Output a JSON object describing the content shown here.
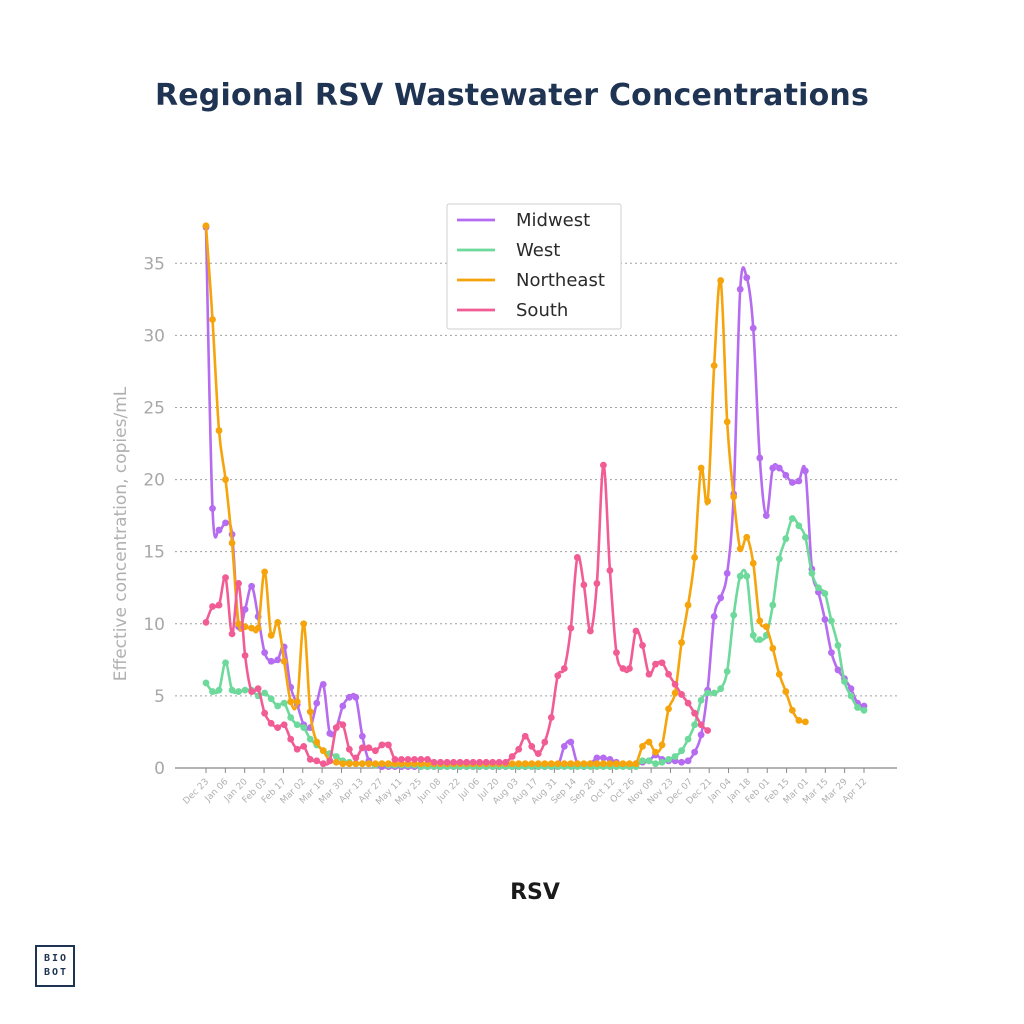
{
  "title": "Regional RSV Wastewater Concentrations",
  "subtitle": "RSV",
  "logo": {
    "line1": "BIO",
    "line2": "BOT"
  },
  "chart_data": {
    "type": "line",
    "title": "Regional RSV Wastewater Concentrations",
    "xlabel": "RSV",
    "ylabel": "Effective concentration, copies/mL",
    "ylim": [
      0,
      38
    ],
    "yticks": [
      0,
      5,
      10,
      15,
      20,
      25,
      30,
      35
    ],
    "grid": "horizontal dotted",
    "legend_position": "top-center",
    "xtick_labels": [
      "Dec 23",
      "Jan 06",
      "Jan 20",
      "Feb 03",
      "Feb 17",
      "Mar 02",
      "Mar 16",
      "Mar 30",
      "Apr 13",
      "Apr 27",
      "May 11",
      "May 25",
      "Jun 08",
      "Jun 22",
      "Jul 06",
      "Jul 20",
      "Aug 03",
      "Aug 17",
      "Aug 31",
      "Sep 14",
      "Sep 28",
      "Oct 12",
      "Oct 26",
      "Nov 09",
      "Nov 23",
      "Dec 07",
      "Dec 21",
      "Jan 04",
      "Jan 18",
      "Feb 01",
      "Feb 15",
      "Mar 01",
      "Mar 15",
      "Mar 29",
      "Apr 12"
    ],
    "series": [
      {
        "name": "Midwest",
        "color": "#b56cf0",
        "values": [
          37.5,
          18.0,
          16.5,
          17.0,
          16.2,
          9.8,
          11.0,
          12.6,
          10.5,
          8.0,
          7.4,
          7.5,
          8.4,
          5.6,
          4.4,
          3.0,
          2.8,
          4.5,
          5.8,
          2.4,
          2.8,
          4.3,
          4.9,
          4.9,
          2.2,
          0.5,
          0.2,
          0.1,
          0.1,
          0.1,
          0.1,
          0.1,
          0.1,
          0.1,
          0.1,
          0.1,
          0.1,
          0.1,
          0.1,
          0.1,
          0.1,
          0.1,
          0.1,
          0.1,
          0.1,
          0.1,
          0.1,
          0.1,
          0.1,
          0.1,
          0.1,
          0.1,
          0.1,
          0.1,
          0.1,
          1.5,
          1.8,
          0.3,
          0.1,
          0.3,
          0.7,
          0.7,
          0.6,
          0.4,
          0.2,
          0.2,
          0.3,
          0.4,
          0.5,
          0.9,
          0.6,
          0.5,
          0.5,
          0.4,
          0.5,
          1.1,
          2.3,
          5.4,
          10.5,
          11.8,
          13.5,
          19.0,
          33.2,
          34.0,
          30.5,
          21.5,
          17.5,
          20.8,
          20.8,
          20.3,
          19.8,
          19.9,
          20.6,
          13.8,
          12.2,
          10.3,
          8.0,
          6.8,
          6.2,
          5.5,
          4.5,
          4.3
        ],
        "points": [
          0,
          1,
          3,
          4,
          5,
          6,
          7,
          9,
          10,
          11,
          12,
          13,
          14,
          15,
          17,
          18,
          19,
          20,
          21,
          22,
          23,
          24,
          25,
          36,
          37,
          38,
          39,
          40,
          41,
          42,
          43,
          44,
          45,
          46,
          47,
          48,
          49,
          50,
          51,
          52,
          53,
          54,
          55,
          56,
          57,
          58,
          59,
          60,
          61,
          62,
          63,
          64,
          65,
          66,
          67,
          68,
          69,
          70,
          71,
          72,
          73,
          74,
          75,
          76,
          77,
          78,
          79,
          80,
          81,
          82,
          83,
          84,
          85,
          86,
          87,
          88,
          89,
          90,
          91,
          92,
          93,
          94,
          95,
          96,
          97,
          98,
          99,
          100,
          101
        ]
      },
      {
        "name": "West",
        "color": "#6dd99a",
        "values": [
          5.9,
          5.3,
          5.4,
          7.3,
          5.4,
          5.3,
          5.4,
          5.4,
          5.0,
          5.2,
          4.8,
          4.3,
          4.5,
          3.5,
          3.0,
          2.8,
          2.0,
          1.6,
          1.2,
          1.0,
          0.8,
          0.5,
          0.4,
          0.3,
          0.3,
          0.3,
          0.2,
          0.3,
          0.2,
          0.2,
          0.2,
          0.2,
          0.2,
          0.1,
          0.1,
          0.1,
          0.1,
          0.1,
          0.1,
          0.1,
          0.1,
          0.1,
          0.1,
          0.1,
          0.1,
          0.1,
          0.1,
          0.1,
          0.1,
          0.1,
          0.1,
          0.1,
          0.1,
          0.1,
          0.1,
          0.1,
          0.1,
          0.1,
          0.1,
          0.1,
          0.1,
          0.1,
          0.1,
          0.1,
          0.1,
          0.1,
          0.1,
          0.5,
          0.5,
          0.3,
          0.4,
          0.6,
          0.8,
          1.2,
          2.0,
          3.0,
          4.7,
          5.2,
          5.2,
          5.5,
          6.7,
          10.6,
          13.3,
          13.3,
          9.2,
          8.9,
          9.2,
          11.3,
          14.5,
          15.9,
          17.3,
          16.8,
          16.0,
          13.5,
          12.5,
          12.1,
          10.2,
          8.5,
          6.0,
          5.0,
          4.2,
          4.0
        ],
        "points": [
          0,
          1,
          2,
          3,
          4,
          5,
          6,
          7,
          8,
          9,
          10,
          11,
          12,
          13,
          14,
          15,
          16,
          17,
          18,
          19,
          20,
          21,
          22,
          23,
          24,
          25,
          26,
          27,
          28,
          29,
          30,
          31,
          32,
          33,
          34,
          35,
          36,
          37,
          38,
          39,
          40,
          41,
          42,
          43,
          44,
          45,
          46,
          47,
          48,
          49,
          50,
          51,
          52,
          53,
          54,
          55,
          56,
          57,
          58,
          59,
          60,
          61,
          62,
          63,
          64,
          65,
          66,
          67,
          68,
          69,
          70,
          71,
          72,
          73,
          74,
          75,
          76,
          77,
          78,
          79,
          80,
          81,
          82,
          83,
          84,
          85,
          86,
          87,
          88,
          89,
          90,
          91,
          92,
          93,
          94,
          95,
          96,
          97,
          98,
          99,
          100,
          101
        ]
      },
      {
        "name": "Northeast",
        "color": "#f5a40c",
        "values": [
          37.6,
          31.1,
          23.4,
          20.0,
          15.6,
          10.0,
          9.8,
          9.7,
          9.7,
          13.6,
          9.2,
          10.1,
          7.4,
          4.6,
          4.6,
          10.0,
          3.9,
          1.8,
          1.2,
          0.5,
          0.4,
          0.3,
          0.3,
          0.3,
          0.3,
          0.3,
          0.3,
          0.3,
          0.3,
          0.3,
          0.3,
          0.3,
          0.3,
          0.3,
          0.3,
          0.3,
          0.3,
          0.3,
          0.3,
          0.3,
          0.3,
          0.3,
          0.3,
          0.3,
          0.3,
          0.3,
          0.3,
          0.3,
          0.3,
          0.3,
          0.3,
          0.3,
          0.3,
          0.3,
          0.3,
          0.3,
          0.3,
          0.3,
          0.3,
          0.3,
          0.3,
          0.3,
          0.3,
          0.3,
          0.3,
          0.3,
          0.3,
          1.5,
          1.8,
          1.1,
          1.6,
          4.1,
          5.2,
          8.7,
          11.3,
          14.6,
          20.8,
          18.5,
          27.9,
          33.8,
          24.0,
          18.8,
          15.2,
          16.0,
          14.2,
          10.2,
          9.8,
          8.3,
          6.5,
          5.3,
          4.0,
          3.3,
          3.2
        ],
        "points": [
          0,
          1,
          2,
          3,
          4,
          5,
          6,
          7,
          8,
          9,
          10,
          11,
          12,
          13,
          14,
          15,
          16,
          17,
          18,
          19,
          20,
          21,
          22,
          23,
          24,
          25,
          26,
          27,
          28,
          29,
          30,
          31,
          32,
          33,
          34,
          35,
          36,
          37,
          38,
          39,
          40,
          41,
          42,
          43,
          44,
          45,
          46,
          47,
          48,
          49,
          50,
          51,
          52,
          53,
          54,
          55,
          56,
          57,
          58,
          59,
          60,
          61,
          62,
          63,
          64,
          65,
          66,
          67,
          68,
          69,
          70,
          71,
          72,
          73,
          74,
          75,
          76,
          77,
          78,
          79,
          80,
          81,
          82,
          83,
          84,
          85,
          86,
          87,
          88,
          89,
          90,
          91,
          92,
          93
        ]
      },
      {
        "name": "South",
        "color": "#f25c94",
        "values": [
          10.1,
          11.2,
          11.3,
          13.2,
          9.3,
          12.8,
          7.8,
          5.3,
          5.5,
          3.8,
          3.1,
          2.8,
          3.0,
          2.0,
          1.3,
          1.5,
          0.6,
          0.5,
          0.3,
          0.5,
          2.8,
          3.0,
          1.3,
          0.7,
          1.4,
          1.4,
          1.2,
          1.6,
          1.6,
          0.6,
          0.6,
          0.6,
          0.6,
          0.6,
          0.6,
          0.4,
          0.4,
          0.4,
          0.4,
          0.4,
          0.4,
          0.4,
          0.4,
          0.4,
          0.4,
          0.4,
          0.4,
          0.8,
          1.3,
          2.2,
          1.5,
          1.0,
          1.8,
          3.5,
          6.4,
          6.9,
          9.7,
          14.6,
          12.7,
          9.5,
          12.8,
          21.0,
          13.7,
          8.0,
          6.9,
          6.9,
          9.5,
          8.5,
          6.5,
          7.2,
          7.3,
          6.5,
          5.8,
          5.1,
          4.5,
          3.8,
          3.0,
          2.6
        ],
        "points": [
          0,
          1,
          2,
          3,
          4,
          5,
          6,
          7,
          8,
          9,
          10,
          11,
          12,
          13,
          14,
          15,
          16,
          17,
          18,
          19,
          20,
          21,
          22,
          23,
          24,
          25,
          26,
          27,
          28,
          29,
          30,
          31,
          32,
          33,
          34,
          35,
          36,
          37,
          38,
          39,
          40,
          41,
          42,
          43,
          44,
          45,
          46,
          47,
          48,
          49,
          50,
          51,
          52,
          53,
          54,
          55,
          56,
          57,
          58,
          59,
          60,
          61,
          62,
          63,
          64,
          65,
          66,
          67,
          68,
          69,
          70,
          71,
          72,
          73,
          74,
          75,
          76,
          77
        ]
      }
    ]
  }
}
